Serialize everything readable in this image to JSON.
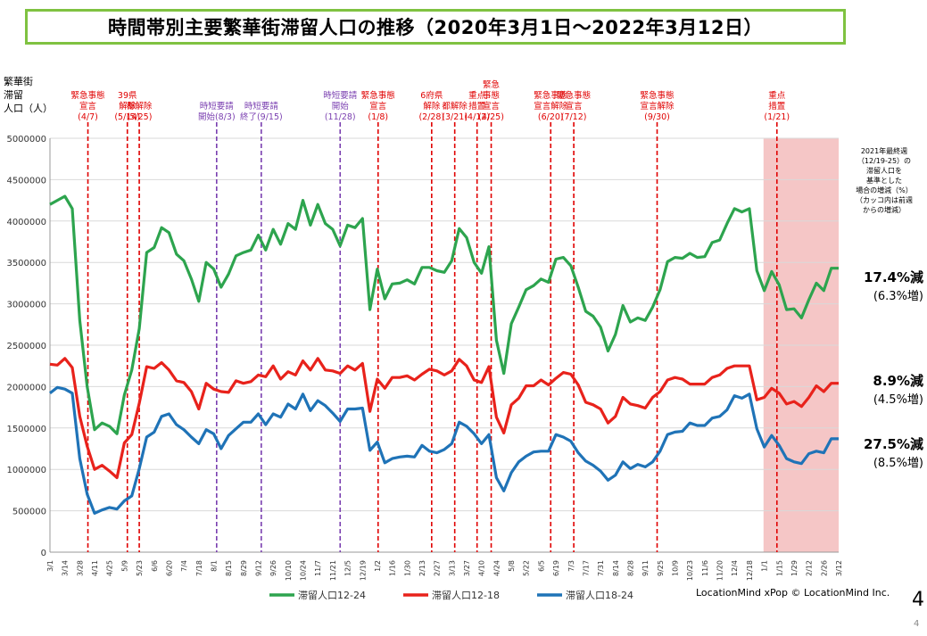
{
  "title": "時間帯別主要繁華街滞留人口の推移（2020年3月1日～2022年3月12日）",
  "ylabel_lines": [
    "繁華街",
    "滞留",
    "人口（人）"
  ],
  "credit": "LocationMind xPop © LocationMind Inc.",
  "page_number": "4",
  "page_number_small": "4",
  "note_lines": [
    "2021年最終週",
    "（12/19-25）の",
    "滞留人口を",
    "基準とした",
    "場合の増減（%）",
    "（カッコ内は前週",
    "からの増減）"
  ],
  "summary": [
    {
      "main": "17.4%減",
      "sub": "(6.3%増)"
    },
    {
      "main": "8.9%減",
      "sub": "(4.5%増)"
    },
    {
      "main": "27.5%減",
      "sub": "(8.5%増)"
    }
  ],
  "colors": {
    "green": "#2da44e",
    "red": "#e8221b",
    "blue": "#1f73b7",
    "event_red": "#e00000",
    "event_purple": "#7a3fb0",
    "shade": "#f5c6c6"
  },
  "chart_data": {
    "type": "line",
    "ylim": [
      0,
      5000000
    ],
    "yticks": [
      0,
      500000,
      1000000,
      1500000,
      2000000,
      2500000,
      3000000,
      3500000,
      4000000,
      4500000,
      5000000
    ],
    "x_count": 107,
    "xtick_labels": [
      "3/1",
      "3/7",
      "3/14",
      "3/21",
      "3/28",
      "4/4",
      "4/11",
      "4/18",
      "4/25",
      "5/2",
      "5/9",
      "5/16",
      "5/23",
      "5/30",
      "6/6",
      "6/13",
      "6/20",
      "6/27",
      "7/4",
      "7/11",
      "7/18",
      "7/25",
      "8/1",
      "8/8",
      "8/15",
      "8/22",
      "8/29",
      "9/5",
      "9/12",
      "9/19",
      "9/26",
      "10/3",
      "10/10",
      "10/17",
      "10/24",
      "10/31",
      "11/7",
      "11/14",
      "11/21",
      "11/28",
      "12/5",
      "12/12",
      "12/19",
      "12/26",
      "1/2",
      "1/9",
      "1/16",
      "1/23",
      "1/30",
      "2/6",
      "2/13",
      "2/20",
      "2/27",
      "3/6",
      "3/13",
      "3/20",
      "3/27",
      "4/3",
      "4/10",
      "4/17",
      "4/24",
      "5/1",
      "5/8",
      "5/15",
      "5/22",
      "5/29",
      "6/5",
      "6/12",
      "6/19",
      "6/26",
      "7/3",
      "7/10",
      "7/17",
      "7/24",
      "7/31",
      "8/7",
      "8/14",
      "8/21",
      "8/28",
      "9/4",
      "9/11",
      "9/18",
      "9/25",
      "10/2",
      "10/9",
      "10/16",
      "10/23",
      "10/30",
      "11/6",
      "11/13",
      "11/20",
      "11/27",
      "12/4",
      "12/11",
      "12/18",
      "12/25",
      "1/1",
      "1/8",
      "1/15",
      "1/22",
      "1/29",
      "2/5",
      "2/12",
      "2/19",
      "2/26",
      "3/5",
      "3/12"
    ],
    "series": [
      {
        "name": "滞留人口12-24",
        "color": "#2da44e",
        "values": [
          4200000,
          4250000,
          4300000,
          4150000,
          2800000,
          2000000,
          1480000,
          1560000,
          1520000,
          1430000,
          1900000,
          2200000,
          2700000,
          3620000,
          3680000,
          3920000,
          3860000,
          3600000,
          3520000,
          3300000,
          3030000,
          3500000,
          3420000,
          3200000,
          3360000,
          3580000,
          3620000,
          3650000,
          3830000,
          3650000,
          3900000,
          3720000,
          3970000,
          3900000,
          4250000,
          3950000,
          4200000,
          3970000,
          3900000,
          3700000,
          3950000,
          3920000,
          4030000,
          2930000,
          3420000,
          3060000,
          3240000,
          3250000,
          3290000,
          3240000,
          3440000,
          3440000,
          3400000,
          3380000,
          3520000,
          3910000,
          3800000,
          3500000,
          3370000,
          3690000,
          2560000,
          2160000,
          2760000,
          2960000,
          3170000,
          3220000,
          3300000,
          3260000,
          3540000,
          3560000,
          3460000,
          3200000,
          2910000,
          2850000,
          2720000,
          2430000,
          2630000,
          2980000,
          2780000,
          2830000,
          2800000,
          2960000,
          3170000,
          3510000,
          3560000,
          3550000,
          3610000,
          3560000,
          3570000,
          3740000,
          3770000,
          3970000,
          4150000,
          4110000,
          4150000,
          3400000,
          3160000,
          3390000,
          3230000,
          2930000,
          2940000,
          2830000,
          3050000,
          3250000,
          3160000,
          3430000,
          3430000
        ]
      },
      {
        "name": "滞留人口12-18",
        "color": "#e8221b",
        "values": [
          2270000,
          2260000,
          2340000,
          2230000,
          1640000,
          1280000,
          1000000,
          1050000,
          980000,
          900000,
          1320000,
          1420000,
          1800000,
          2240000,
          2220000,
          2290000,
          2200000,
          2070000,
          2050000,
          1940000,
          1730000,
          2040000,
          1970000,
          1940000,
          1930000,
          2070000,
          2040000,
          2060000,
          2140000,
          2120000,
          2250000,
          2090000,
          2180000,
          2140000,
          2310000,
          2200000,
          2340000,
          2200000,
          2190000,
          2160000,
          2250000,
          2200000,
          2280000,
          1700000,
          2090000,
          1980000,
          2110000,
          2110000,
          2130000,
          2080000,
          2150000,
          2210000,
          2190000,
          2140000,
          2190000,
          2330000,
          2250000,
          2080000,
          2050000,
          2240000,
          1630000,
          1440000,
          1780000,
          1860000,
          2010000,
          2010000,
          2080000,
          2020000,
          2100000,
          2170000,
          2150000,
          2020000,
          1810000,
          1780000,
          1730000,
          1560000,
          1640000,
          1870000,
          1790000,
          1770000,
          1740000,
          1870000,
          1940000,
          2080000,
          2110000,
          2090000,
          2030000,
          2030000,
          2030000,
          2110000,
          2140000,
          2220000,
          2250000,
          2250000,
          2250000,
          1840000,
          1870000,
          1980000,
          1920000,
          1790000,
          1820000,
          1760000,
          1870000,
          2010000,
          1940000,
          2040000,
          2040000
        ]
      },
      {
        "name": "滞留人口18-24",
        "color": "#1f73b7",
        "values": [
          1920000,
          1990000,
          1970000,
          1920000,
          1130000,
          700000,
          470000,
          510000,
          540000,
          520000,
          620000,
          680000,
          1010000,
          1390000,
          1450000,
          1640000,
          1670000,
          1540000,
          1480000,
          1390000,
          1310000,
          1480000,
          1430000,
          1250000,
          1410000,
          1490000,
          1570000,
          1570000,
          1670000,
          1540000,
          1670000,
          1630000,
          1790000,
          1730000,
          1910000,
          1710000,
          1830000,
          1770000,
          1680000,
          1580000,
          1730000,
          1730000,
          1740000,
          1230000,
          1330000,
          1080000,
          1130000,
          1150000,
          1160000,
          1150000,
          1290000,
          1220000,
          1200000,
          1240000,
          1310000,
          1570000,
          1520000,
          1430000,
          1310000,
          1420000,
          900000,
          740000,
          960000,
          1090000,
          1160000,
          1210000,
          1220000,
          1220000,
          1420000,
          1390000,
          1340000,
          1200000,
          1100000,
          1050000,
          980000,
          870000,
          930000,
          1090000,
          1010000,
          1060000,
          1030000,
          1090000,
          1220000,
          1420000,
          1450000,
          1460000,
          1560000,
          1530000,
          1530000,
          1620000,
          1640000,
          1720000,
          1890000,
          1860000,
          1910000,
          1490000,
          1270000,
          1410000,
          1290000,
          1130000,
          1090000,
          1070000,
          1190000,
          1220000,
          1200000,
          1370000,
          1370000
        ]
      }
    ],
    "events": [
      {
        "label_lines": [
          "緊急事態",
          "宣言",
          "(4/7)"
        ],
        "x": 5.1,
        "color": "red"
      },
      {
        "label_lines": [
          "39県",
          "解除",
          "(5/14)"
        ],
        "x": 10.4,
        "color": "red"
      },
      {
        "label_lines": [
          "都解除",
          "(5/25)"
        ],
        "x": 12.0,
        "color": "red"
      },
      {
        "label_lines": [
          "時短要請",
          "開始(8/3)"
        ],
        "x": 22.4,
        "color": "purple"
      },
      {
        "label_lines": [
          "時短要請",
          "終了(9/15)"
        ],
        "x": 28.4,
        "color": "purple"
      },
      {
        "label_lines": [
          "時短要請",
          "開始",
          "(11/28)"
        ],
        "x": 39.0,
        "color": "purple"
      },
      {
        "label_lines": [
          "緊急事態",
          "宣言",
          "(1/8)"
        ],
        "x": 44.1,
        "color": "red"
      },
      {
        "label_lines": [
          "6府県",
          "解除",
          "(2/28)"
        ],
        "x": 51.3,
        "color": "red"
      },
      {
        "label_lines": [
          "都解除",
          "(3/21)"
        ],
        "x": 54.4,
        "color": "red"
      },
      {
        "label_lines": [
          "重点",
          "措置",
          "(4/12)"
        ],
        "x": 57.4,
        "color": "red"
      },
      {
        "label_lines": [
          "緊急",
          "事態",
          "宣言",
          "(4/25)"
        ],
        "x": 59.3,
        "color": "red"
      },
      {
        "label_lines": [
          "緊急事態",
          "宣言解除",
          "(6/20)"
        ],
        "x": 67.3,
        "color": "red"
      },
      {
        "label_lines": [
          "緊急事態",
          "宣言",
          "(7/12)"
        ],
        "x": 70.4,
        "color": "red"
      },
      {
        "label_lines": [
          "緊急事態",
          "宣言解除",
          "(9/30)"
        ],
        "x": 81.6,
        "color": "red"
      },
      {
        "label_lines": [
          "重点",
          "措置",
          "(1/21)"
        ],
        "x": 97.7,
        "color": "red"
      }
    ],
    "shaded_range": [
      95.9,
      106
    ]
  }
}
